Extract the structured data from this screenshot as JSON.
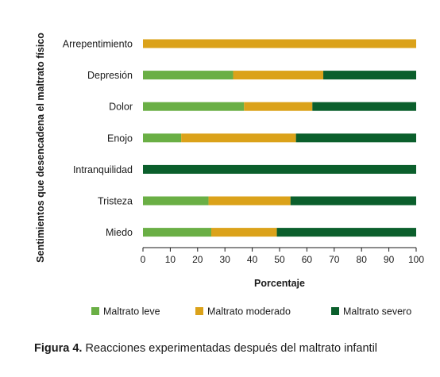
{
  "chart_data": {
    "type": "bar",
    "orientation": "horizontal",
    "stacked": true,
    "categories": [
      "Arrepentimiento",
      "Depresión",
      "Dolor",
      "Enojo",
      "Intranquilidad",
      "Tristeza",
      "Miedo"
    ],
    "series": [
      {
        "name": "Maltrato leve",
        "color": "#6aaf45",
        "values": [
          0,
          33,
          37,
          14,
          0,
          24,
          25
        ]
      },
      {
        "name": "Maltrato moderado",
        "color": "#dba21a",
        "values": [
          100,
          33,
          25,
          42,
          0,
          30,
          24
        ]
      },
      {
        "name": "Maltrato severo",
        "color": "#0b5f2c",
        "values": [
          0,
          34,
          38,
          44,
          100,
          46,
          51
        ]
      }
    ],
    "xlabel": "Porcentaje",
    "ylabel": "Sentimientos que desencadena el maltrato físico",
    "xlim": [
      0,
      100
    ],
    "xticks": [
      0,
      10,
      20,
      30,
      40,
      50,
      60,
      70,
      80,
      90,
      100
    ],
    "grid": false,
    "legend_position": "bottom"
  },
  "caption": {
    "label": "Figura 4.",
    "text": " Reacciones experimentadas después del maltrato infantil"
  }
}
